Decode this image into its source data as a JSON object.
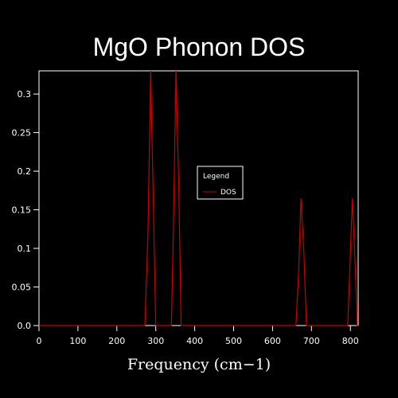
{
  "chart_data": {
    "type": "line",
    "title": "MgO Phonon DOS",
    "xlabel": "Frequency (cm−1)",
    "ylabel": "",
    "xlim": [
      0,
      820
    ],
    "ylim": [
      0,
      0.33
    ],
    "xticks": [
      "0",
      "100",
      "200",
      "300",
      "400",
      "500",
      "600",
      "700",
      "800"
    ],
    "yticks": [
      "0.0",
      "0.05",
      "0.1",
      "0.15",
      "0.2",
      "0.25",
      "0.3"
    ],
    "grid": false,
    "legend": {
      "title": "Legend",
      "position": "center-right"
    },
    "series": [
      {
        "name": "DOS",
        "color": "#cc0000",
        "points": [
          [
            0,
            0
          ],
          [
            272,
            0
          ],
          [
            280,
            0.12
          ],
          [
            287,
            0.33
          ],
          [
            294,
            0.15
          ],
          [
            300,
            0
          ],
          [
            340,
            0
          ],
          [
            345,
            0.12
          ],
          [
            352,
            0.33
          ],
          [
            359,
            0.18
          ],
          [
            365,
            0
          ],
          [
            660,
            0
          ],
          [
            667,
            0.07
          ],
          [
            673,
            0.165
          ],
          [
            680,
            0.1
          ],
          [
            687,
            0
          ],
          [
            793,
            0
          ],
          [
            799,
            0.08
          ],
          [
            805,
            0.165
          ],
          [
            812,
            0.08
          ],
          [
            818,
            0
          ],
          [
            820,
            0
          ]
        ]
      }
    ]
  },
  "colors": {
    "background": "#000000",
    "axes": "#ffffff",
    "line": "#cc0000"
  }
}
